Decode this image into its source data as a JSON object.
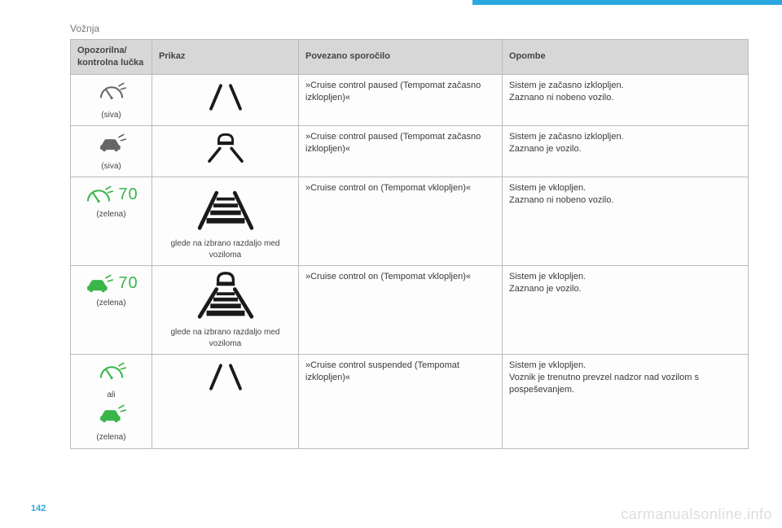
{
  "header": {
    "section": "Vožnja"
  },
  "footer": {
    "page": "142",
    "watermark": "carmanualsonline.info"
  },
  "table": {
    "headers": {
      "c1": "Opozorilna/\nkontrolna lučka",
      "c2": "Prikaz",
      "c3": "Povezano sporočilo",
      "c4": "Opombe"
    },
    "rows": [
      {
        "indicator": {
          "color": "gray",
          "label": "(siva)",
          "type": "gauge",
          "speed": ""
        },
        "display": {
          "type": "lanes",
          "caption": ""
        },
        "message": "»Cruise control paused (Tempomat začasno izklopljen)«",
        "note": "Sistem je začasno izklopljen.\nZaznano ni nobeno vozilo."
      },
      {
        "indicator": {
          "color": "gray",
          "label": "(siva)",
          "type": "car-gauge",
          "speed": ""
        },
        "display": {
          "type": "car-lanes",
          "caption": ""
        },
        "message": "»Cruise control paused (Tempomat začasno izklopljen)«",
        "note": "Sistem je začasno izklopljen.\nZaznano je vozilo."
      },
      {
        "indicator": {
          "color": "green",
          "label": "(zelena)",
          "type": "gauge",
          "speed": "70"
        },
        "display": {
          "type": "road-bars",
          "caption": "glede na izbrano razdaljo med voziloma"
        },
        "message": "»Cruise control on (Tempomat vklopljen)«",
        "note": "Sistem je vklopljen.\nZaznano ni nobeno vozilo."
      },
      {
        "indicator": {
          "color": "green",
          "label": "(zelena)",
          "type": "car-gauge",
          "speed": "70"
        },
        "display": {
          "type": "car-road-bars",
          "caption": "glede na izbrano razdaljo med voziloma"
        },
        "message": "»Cruise control on (Tempomat vklopljen)«",
        "note": "Sistem je vklopljen.\nZaznano je vozilo."
      },
      {
        "indicator": {
          "color": "green",
          "label": "(zelena)",
          "type": "both",
          "speed": "",
          "middle": "ali"
        },
        "display": {
          "type": "lanes",
          "caption": ""
        },
        "message": "»Cruise control suspended (Tempomat izklopljen)«",
        "note": "Sistem je vklopljen.\nVoznik je trenutno prevzel nadzor nad vozilom s pospeševanjem."
      }
    ]
  },
  "colors": {
    "green": "#39b54a",
    "gray": "#666666",
    "black": "#1a1a1a",
    "headerAccent": "#2aa7df"
  }
}
